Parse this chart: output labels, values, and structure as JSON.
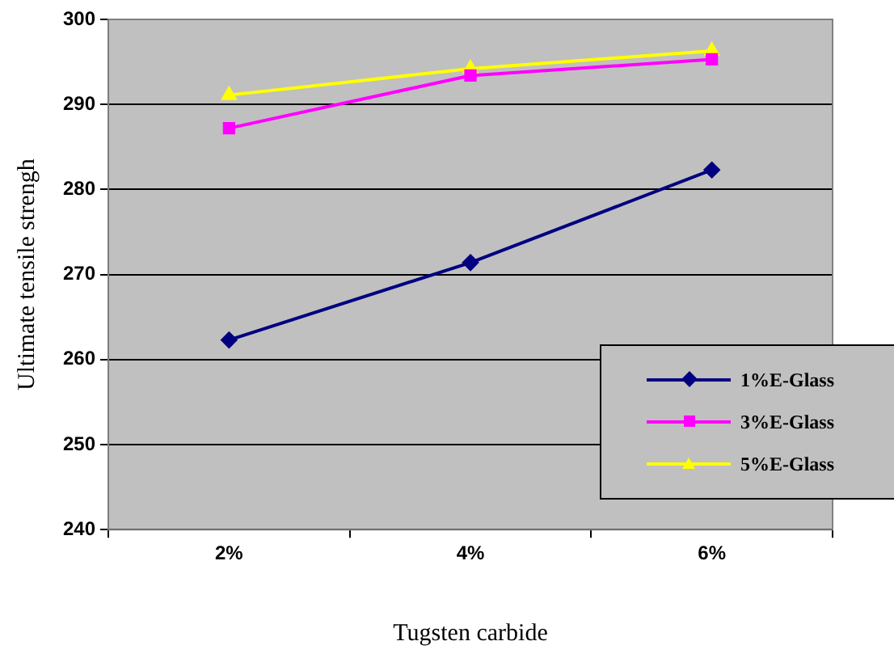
{
  "chart_data": {
    "type": "line",
    "xlabel": "Tugsten carbide",
    "ylabel": "Ultimate tensile strengh",
    "categories": [
      "2%",
      "4%",
      "6%"
    ],
    "series": [
      {
        "name": "1%E-Glass",
        "color": "#000080",
        "marker": "diamond",
        "values": [
          262.3,
          271.4,
          282.3
        ]
      },
      {
        "name": "3%E-Glass",
        "color": "#ff00ff",
        "marker": "square",
        "values": [
          287.2,
          293.4,
          295.3
        ]
      },
      {
        "name": "5%E-Glass",
        "color": "#ffff00",
        "marker": "triangle",
        "values": [
          291.1,
          294.2,
          296.3
        ]
      }
    ],
    "ylim": [
      240,
      300
    ],
    "yticks": [
      240,
      250,
      260,
      270,
      280,
      290,
      300
    ],
    "grid": "y",
    "legend": "bottom right",
    "line_style": "solid"
  }
}
